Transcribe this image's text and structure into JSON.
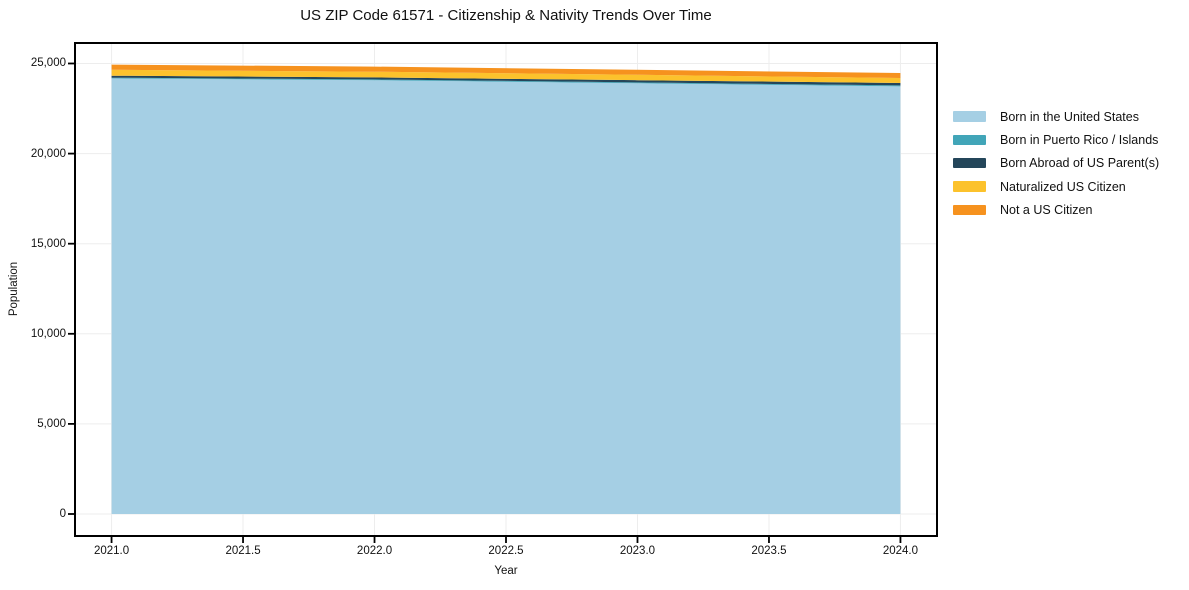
{
  "figure": {
    "background": "#ffffff"
  },
  "chart_data": {
    "type": "area",
    "stacked": true,
    "title": "US ZIP Code 61571 - Citizenship & Nativity Trends Over Time",
    "xlabel": "Year",
    "ylabel": "Population",
    "x": [
      2021,
      2022,
      2023,
      2024
    ],
    "series": [
      {
        "name": "Born in the United States",
        "color": "#A5CFE4",
        "values": [
          24170,
          24070,
          23900,
          23730
        ]
      },
      {
        "name": "Born in Puerto Rico / Islands",
        "color": "#41A5B8",
        "values": [
          40,
          45,
          50,
          55
        ]
      },
      {
        "name": "Born Abroad of US Parent(s)",
        "color": "#24465A",
        "values": [
          110,
          115,
          120,
          130
        ]
      },
      {
        "name": "Naturalized US Citizen",
        "color": "#FCC22C",
        "values": [
          330,
          315,
          300,
          280
        ]
      },
      {
        "name": "Not a US Citizen",
        "color": "#F6921E",
        "values": [
          290,
          285,
          280,
          275
        ]
      }
    ],
    "totals": [
      24940,
      24830,
      24650,
      24470
    ],
    "xlim": [
      2020.861,
      2024.139
    ],
    "ylim": [
      -1221,
      26137
    ],
    "x_ticks": {
      "values": [
        2021.0,
        2021.5,
        2022.0,
        2022.5,
        2023.0,
        2023.5,
        2024.0
      ],
      "labels": [
        "2021.0",
        "2021.5",
        "2022.0",
        "2022.5",
        "2023.0",
        "2023.5",
        "2024.0"
      ]
    },
    "y_ticks": {
      "values": [
        0,
        5000,
        10000,
        15000,
        20000,
        25000
      ],
      "labels": [
        "0",
        "5,000",
        "10,000",
        "15,000",
        "20,000",
        "25,000"
      ]
    },
    "grid": true,
    "grid_color": "#ededed",
    "axis_color": "#000000",
    "legend_position": "right-upper, no frame"
  }
}
